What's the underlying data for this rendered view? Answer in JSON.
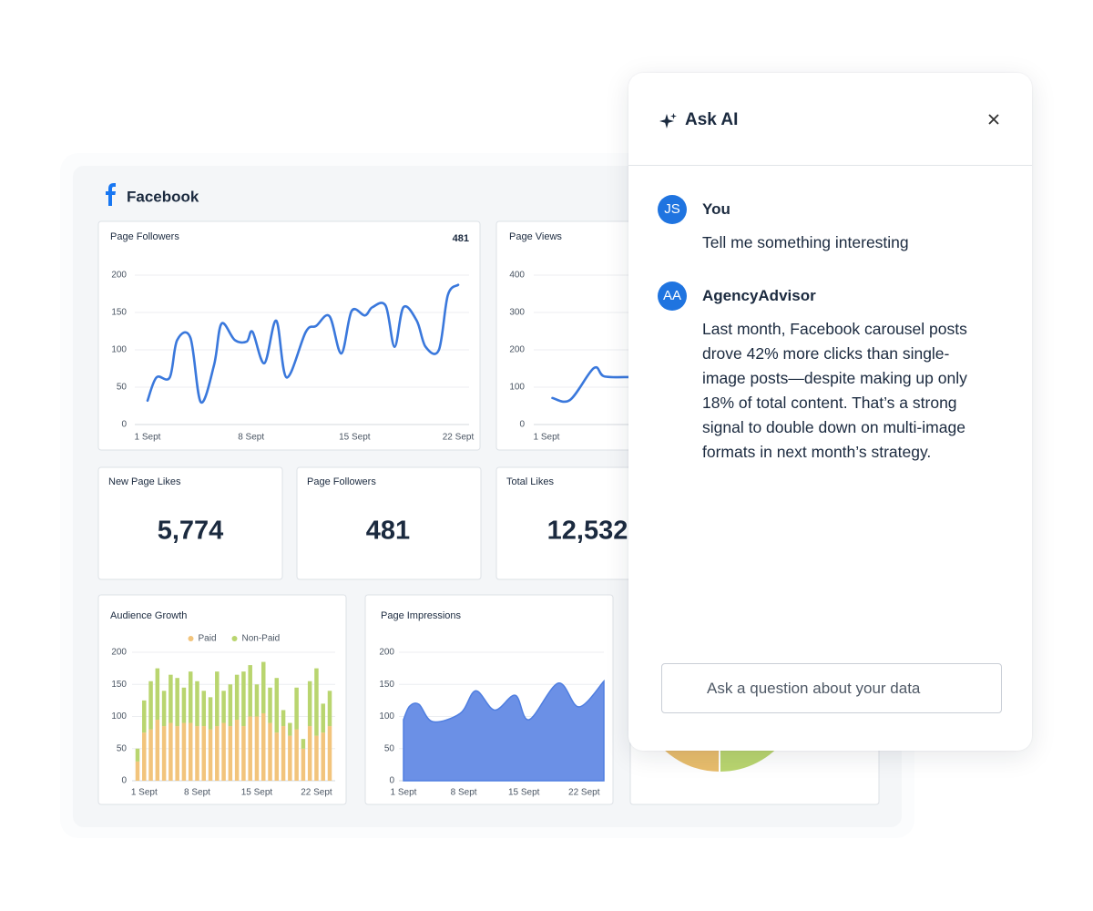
{
  "dashboard": {
    "title": "Facebook",
    "kpis": [
      {
        "label": "New Page Likes",
        "value": "5,774"
      },
      {
        "label": "Page Followers",
        "value": "481"
      },
      {
        "label": "Total Likes",
        "value": "12,532"
      }
    ]
  },
  "chart_data": [
    {
      "type": "line",
      "title": "Page Followers",
      "summary": 481,
      "color": "#3a78dc",
      "x": [
        1,
        1.6,
        2.5,
        3,
        3.9,
        4.6,
        5.5,
        6,
        6.9,
        7.7,
        8.1,
        8.9,
        9.7,
        10.4,
        11.7,
        12.4,
        13.3,
        14.1,
        14.8,
        15.7,
        16.2,
        17.1,
        17.7,
        18.3,
        19.2,
        19.8,
        20.7,
        21.3,
        22
      ],
      "values": [
        32,
        63,
        63,
        113,
        116,
        30,
        80,
        135,
        113,
        111,
        124,
        82,
        139,
        63,
        124,
        132,
        145,
        95,
        152,
        146,
        157,
        159,
        104,
        157,
        139,
        104,
        100,
        173,
        187
      ],
      "xlim": [
        1,
        22
      ],
      "xticks": [
        {
          "value": 1,
          "label": "1 Sept"
        },
        {
          "value": 8,
          "label": "8 Sept"
        },
        {
          "value": 15,
          "label": "15 Sept"
        },
        {
          "value": 22,
          "label": "22 Sept"
        }
      ],
      "ylim": [
        0,
        200
      ],
      "yticks": [
        0,
        50,
        100,
        150,
        200
      ],
      "grid": true
    },
    {
      "type": "line",
      "title": "Page Views",
      "color": "#3a78dc",
      "x": [
        1.4,
        2.6,
        4.2,
        4.9,
        6.6
      ],
      "values": [
        71,
        66,
        151,
        129,
        127
      ],
      "xlim": [
        1,
        22
      ],
      "xticks": [
        {
          "value": 1,
          "label": "1 Sept"
        }
      ],
      "ylim": [
        0,
        400
      ],
      "yticks": [
        0,
        100,
        200,
        300,
        400
      ],
      "grid": true
    },
    {
      "type": "bar",
      "stacked": true,
      "title": "Audience Growth",
      "legend": "top-center",
      "categories": [
        null,
        "1 Sept",
        null,
        null,
        null,
        null,
        null,
        null,
        null,
        "8 Sept",
        null,
        null,
        null,
        null,
        null,
        null,
        null,
        null,
        "15 Sept",
        null,
        null,
        null,
        null,
        null,
        null,
        null,
        null,
        "22 Sept",
        null,
        null
      ],
      "series": [
        {
          "name": "Paid",
          "color": "#f2c47c",
          "values": [
            30,
            75,
            80,
            95,
            85,
            90,
            85,
            90,
            90,
            85,
            85,
            80,
            85,
            90,
            85,
            95,
            85,
            100,
            100,
            105,
            90,
            75,
            85,
            70,
            80,
            50,
            85,
            70,
            75,
            85
          ]
        },
        {
          "name": "Non-Paid",
          "color": "#b9d56f",
          "values": [
            20,
            50,
            75,
            80,
            55,
            75,
            75,
            55,
            80,
            70,
            55,
            50,
            85,
            50,
            65,
            70,
            85,
            80,
            50,
            80,
            55,
            85,
            25,
            20,
            65,
            15,
            70,
            105,
            45,
            55
          ]
        }
      ],
      "ylim": [
        0,
        200
      ],
      "yticks": [
        0,
        50,
        100,
        150,
        200
      ],
      "grid": true
    },
    {
      "type": "area",
      "title": "Page Impressions",
      "color": "#6b90e6",
      "x": [
        1,
        1.7,
        2.8,
        4.4,
        7.6,
        9.4,
        11.6,
        14,
        15.6,
        19,
        21.4,
        24.3
      ],
      "values": [
        95,
        116,
        119,
        92,
        105,
        140,
        110,
        133,
        95,
        152,
        115,
        155
      ],
      "xlim": [
        1,
        24.3
      ],
      "xticks": [
        {
          "value": 1,
          "label": "1 Sept"
        },
        {
          "value": 8,
          "label": "8 Sept"
        },
        {
          "value": 15,
          "label": "15 Sept"
        },
        {
          "value": 22,
          "label": "22 Sept"
        }
      ],
      "ylim": [
        0,
        200
      ],
      "yticks": [
        0,
        50,
        100,
        150,
        200
      ],
      "grid": true
    }
  ],
  "ask_ai": {
    "title": "Ask AI",
    "messages": [
      {
        "avatar": "JS",
        "author": "You",
        "text": "Tell me something interesting"
      },
      {
        "avatar": "AA",
        "author": "AgencyAdvisor",
        "text": "Last month, Facebook carousel posts drove 42% more clicks than single-image posts—despite making up only 18% of total content. That’s a strong signal to double down on multi-image formats in next month’s strategy."
      }
    ],
    "input_placeholder": "Ask a question about your data"
  }
}
